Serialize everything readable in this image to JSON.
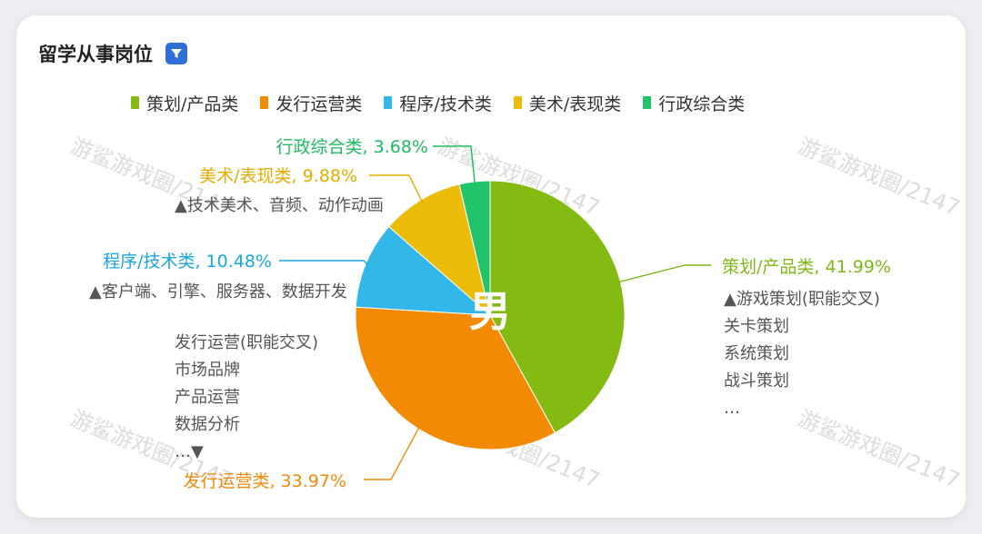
{
  "card": {
    "title": "留学从事岗位"
  },
  "icons": {
    "filter": "filter-icon"
  },
  "watermark": "游鲨游戏圈/2147",
  "center_label": "男",
  "colors": {
    "card_bg": "#ffffff",
    "page_bg": "#eceef1",
    "filter_button": "#2f6fd6"
  },
  "chart_data": {
    "type": "pie",
    "start_angle_deg": 0,
    "direction": "clockwise",
    "series": [
      {
        "name": "策划/产品类",
        "value": 41.99,
        "label": "策划/产品类, 41.99%",
        "color": "#84bb12",
        "label_color": "#7fb81a",
        "description": [
          "▲游戏策划(职能交叉)",
          "关卡策划",
          "系统策划",
          "战斗策划",
          "…"
        ]
      },
      {
        "name": "发行运营类",
        "value": 33.97,
        "label": "发行运营类, 33.97%",
        "color": "#f28a03",
        "label_color": "#ef8a0c",
        "description": [
          "发行运营(职能交叉)",
          "市场品牌",
          "产品运营",
          "数据分析",
          "…▼"
        ]
      },
      {
        "name": "程序/技术类",
        "value": 10.48,
        "label": "程序/技术类, 10.48%",
        "color": "#33b6e8",
        "label_color": "#1aa6de",
        "description": [
          "▲客户端、引擎、服务器、数据开发"
        ]
      },
      {
        "name": "美术/表现类",
        "value": 9.88,
        "label": "美术/表现类, 9.88%",
        "color": "#ebbc0a",
        "label_color": "#e3ad00",
        "description": [
          "▲技术美术、音频、动作动画"
        ]
      },
      {
        "name": "行政综合类",
        "value": 3.68,
        "label": "行政综合类, 3.68%",
        "color": "#21c46a",
        "label_color": "#1fbc61",
        "description": []
      }
    ]
  }
}
